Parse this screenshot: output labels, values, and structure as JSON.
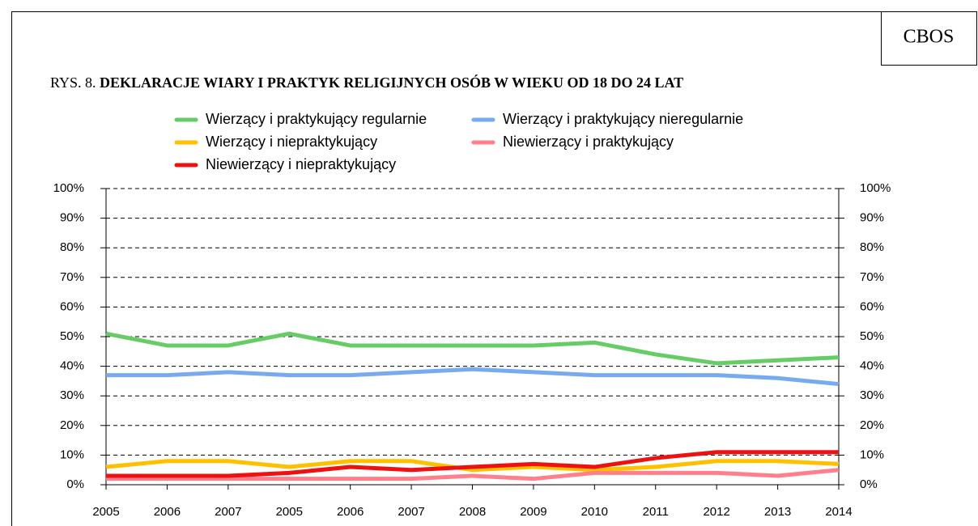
{
  "brand": "CBOS",
  "chart_data": {
    "type": "line",
    "figure_label": "RYS. 8.",
    "title": "DEKLARACJE WIARY I PRAKTYK RELIGIJNYCH OSÓB W WIEKU OD 18 DO 24 LAT",
    "categories": [
      "2005",
      "2006",
      "2007",
      "2005",
      "2006",
      "2007",
      "2008",
      "2009",
      "2010",
      "2011",
      "2012",
      "2013",
      "2014"
    ],
    "series": [
      {
        "name": "Wierzący i praktykujący regularnie",
        "color": "#66cc66",
        "values": [
          51,
          47,
          47,
          51,
          47,
          47,
          47,
          47,
          48,
          44,
          41,
          42,
          43
        ]
      },
      {
        "name": "Wierzący i praktykujący nieregularnie",
        "color": "#77aaee",
        "values": [
          37,
          37,
          38,
          37,
          37,
          38,
          39,
          38,
          37,
          37,
          37,
          36,
          34
        ]
      },
      {
        "name": "Wierzący i niepraktykujący",
        "color": "#ffc000",
        "values": [
          6,
          8,
          8,
          6,
          8,
          8,
          5,
          6,
          5,
          6,
          8,
          8,
          7
        ]
      },
      {
        "name": "Niewierzący i praktykujący",
        "color": "#ff7f8a",
        "values": [
          2,
          2,
          2,
          2,
          2,
          2,
          3,
          2,
          4,
          4,
          4,
          3,
          5
        ]
      },
      {
        "name": "Niewierzący i niepraktykujący",
        "color": "#ee1111",
        "values": [
          3,
          3,
          3,
          4,
          6,
          5,
          6,
          7,
          6,
          9,
          11,
          11,
          11
        ]
      }
    ],
    "ylim": [
      0,
      100
    ],
    "yticks": [
      {
        "value": 0,
        "label": "0%"
      },
      {
        "value": 10,
        "label": "10%"
      },
      {
        "value": 20,
        "label": "20%"
      },
      {
        "value": 30,
        "label": "30%"
      },
      {
        "value": 40,
        "label": "40%"
      },
      {
        "value": 50,
        "label": "50%"
      },
      {
        "value": 60,
        "label": "60%"
      },
      {
        "value": 70,
        "label": "70%"
      },
      {
        "value": 80,
        "label": "80%"
      },
      {
        "value": 90,
        "label": "90%"
      },
      {
        "value": 100,
        "label": "100%"
      }
    ],
    "grid": true,
    "legend": "top"
  }
}
